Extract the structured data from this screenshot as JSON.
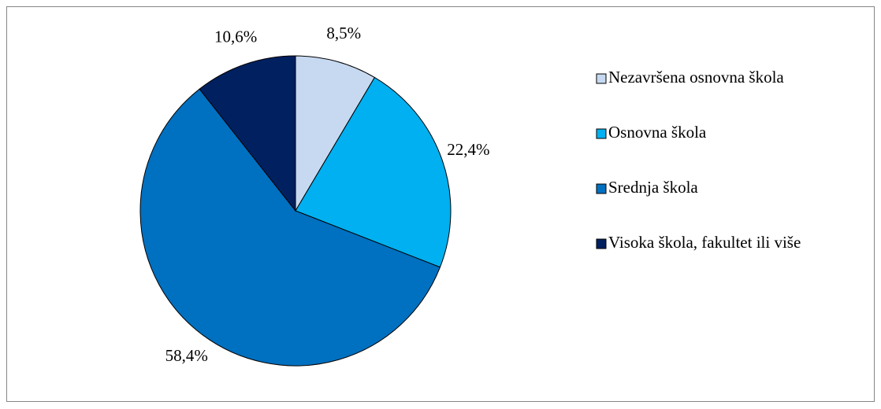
{
  "chart_data": {
    "type": "pie",
    "categories": [
      "Nezavršena osnovna škola",
      "Osnovna škola",
      "Srednja škola",
      "Visoka škola, fakultet ili više"
    ],
    "values": [
      8.5,
      22.4,
      58.4,
      10.6
    ],
    "value_labels": [
      "8,5%",
      "22,4%",
      "58,4%",
      "10,6%"
    ],
    "colors": [
      "#c6d9f1",
      "#00b0f0",
      "#0070c0",
      "#002060"
    ],
    "legend": "right"
  }
}
